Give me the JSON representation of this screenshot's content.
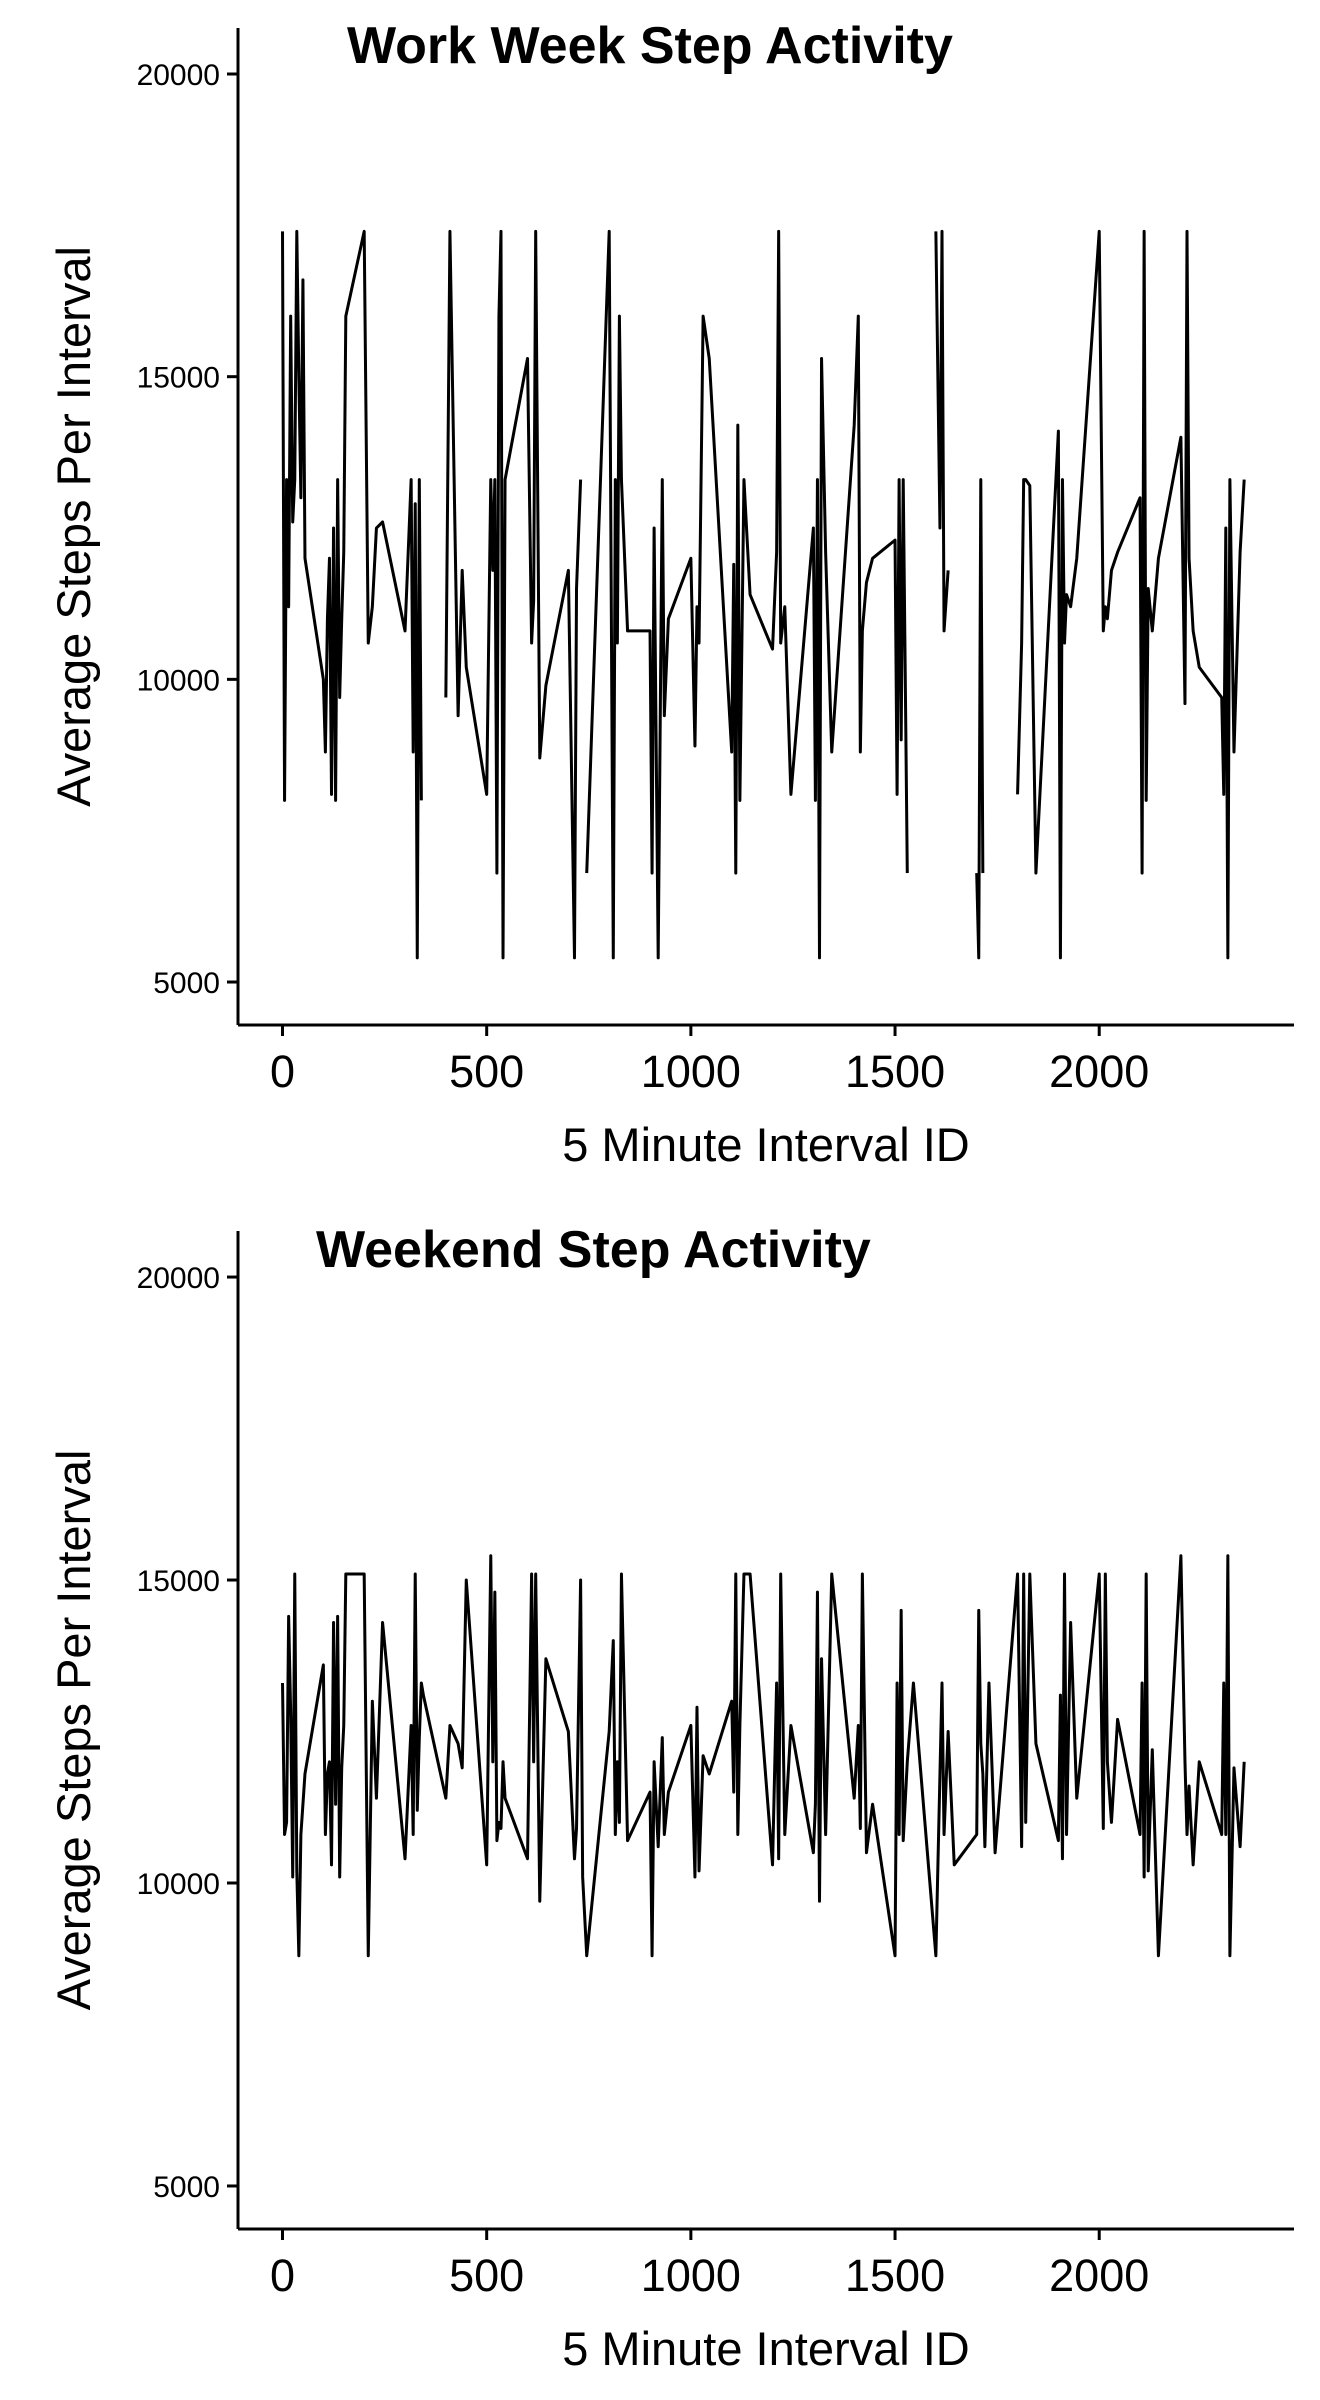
{
  "chart_data": [
    {
      "type": "line",
      "title": "Work Week Step Activity",
      "x_label": "5 Minute Interval ID",
      "y_label": "Average Steps Per Interval",
      "xlim": [
        -109,
        2477
      ],
      "ylim": [
        4290,
        20760
      ],
      "xticks": [
        0,
        500,
        1000,
        1500,
        2000
      ],
      "yticks": [
        5000,
        10000,
        15000,
        20000
      ],
      "grid": false,
      "x": [
        0,
        5,
        10,
        15,
        20,
        25,
        30,
        35,
        40,
        45,
        50,
        55,
        100,
        105,
        110,
        115,
        120,
        125,
        130,
        135,
        140,
        145,
        150,
        155,
        200,
        210,
        220,
        230,
        245,
        300,
        315,
        320,
        325,
        330,
        335,
        340,
        345,
        400,
        410,
        430,
        440,
        450,
        500,
        510,
        515,
        520,
        525,
        530,
        535,
        540,
        545,
        600,
        610,
        615,
        620,
        630,
        645,
        700,
        715,
        720,
        730,
        735,
        745,
        800,
        810,
        815,
        820,
        825,
        830,
        845,
        900,
        905,
        910,
        920,
        930,
        935,
        945,
        1000,
        1010,
        1015,
        1020,
        1030,
        1045,
        1100,
        1105,
        1110,
        1115,
        1120,
        1130,
        1145,
        1200,
        1210,
        1215,
        1220,
        1230,
        1245,
        1300,
        1305,
        1310,
        1315,
        1320,
        1330,
        1345,
        1400,
        1410,
        1415,
        1420,
        1430,
        1445,
        1500,
        1505,
        1510,
        1515,
        1520,
        1530,
        1545,
        1600,
        1610,
        1615,
        1620,
        1630,
        1645,
        1700,
        1705,
        1710,
        1715,
        1720,
        1730,
        1745,
        1800,
        1810,
        1815,
        1820,
        1830,
        1845,
        1900,
        1905,
        1910,
        1915,
        1920,
        1930,
        1945,
        2000,
        2010,
        2015,
        2020,
        2030,
        2045,
        2100,
        2105,
        2110,
        2115,
        2120,
        2130,
        2145,
        2200,
        2210,
        2215,
        2220,
        2230,
        2245,
        2300,
        2305,
        2310,
        2315,
        2320,
        2330,
        2345,
        2355
      ],
      "series": [
        {
          "color": "#000000",
          "values": [
            17400,
            8000,
            13300,
            11200,
            16000,
            12600,
            13300,
            17400,
            15000,
            13000,
            16600,
            12000,
            10000,
            8800,
            11000,
            12000,
            8100,
            12500,
            8000,
            13300,
            9700,
            11000,
            12100,
            16000,
            17400,
            10600,
            11200,
            12500,
            12600,
            10800,
            13300,
            8800,
            12900,
            5400,
            13300,
            8000,
            null,
            9700,
            17400,
            9400,
            11800,
            10200,
            8100,
            13300,
            11800,
            13300,
            6800,
            16000,
            17400,
            5400,
            13300,
            15300,
            10600,
            11300,
            17400,
            8700,
            9900,
            11800,
            5400,
            11500,
            13300,
            null,
            6800,
            17400,
            5400,
            13300,
            10600,
            16000,
            13300,
            10800,
            10800,
            6800,
            12500,
            5400,
            13300,
            9400,
            11000,
            12000,
            8900,
            11200,
            10600,
            16000,
            15300,
            8800,
            11900,
            6800,
            14200,
            8000,
            13300,
            11400,
            10500,
            12100,
            17400,
            10600,
            11200,
            8100,
            12500,
            8000,
            13300,
            5400,
            15300,
            12100,
            8800,
            14200,
            16000,
            8800,
            10800,
            11600,
            12000,
            12300,
            8100,
            13300,
            9000,
            13300,
            6800,
            null,
            17400,
            12500,
            17400,
            10800,
            11800,
            null,
            6800,
            5400,
            13300,
            6800,
            null,
            11700,
            null,
            8100,
            10600,
            13300,
            13300,
            13200,
            6800,
            14100,
            5400,
            13300,
            10600,
            11400,
            11200,
            12000,
            17400,
            10800,
            11200,
            11000,
            11800,
            12100,
            13000,
            6800,
            17400,
            8000,
            11500,
            10800,
            12000,
            14000,
            9600,
            17400,
            12000,
            10800,
            10200,
            9700,
            8100,
            12500,
            5400,
            13300,
            8800,
            12100,
            13300
          ]
        }
      ]
    },
    {
      "type": "line",
      "title": "Weekend Step Activity",
      "x_label": "5 Minute Interval ID",
      "y_label": "Average Steps Per Interval",
      "xlim": [
        -109,
        2477
      ],
      "ylim": [
        4290,
        20760
      ],
      "xticks": [
        0,
        500,
        1000,
        1500,
        2000
      ],
      "yticks": [
        5000,
        10000,
        15000,
        20000
      ],
      "grid": false,
      "x": [
        0,
        5,
        10,
        15,
        20,
        25,
        30,
        35,
        40,
        45,
        50,
        55,
        100,
        105,
        110,
        115,
        120,
        125,
        130,
        135,
        140,
        145,
        150,
        155,
        200,
        210,
        220,
        230,
        245,
        300,
        315,
        320,
        325,
        330,
        335,
        340,
        345,
        400,
        410,
        430,
        440,
        450,
        500,
        510,
        515,
        520,
        525,
        530,
        535,
        540,
        545,
        600,
        610,
        615,
        620,
        630,
        645,
        700,
        715,
        720,
        730,
        735,
        745,
        800,
        810,
        815,
        820,
        825,
        830,
        845,
        900,
        905,
        910,
        920,
        930,
        935,
        945,
        1000,
        1010,
        1015,
        1020,
        1030,
        1045,
        1100,
        1105,
        1110,
        1115,
        1120,
        1130,
        1145,
        1200,
        1210,
        1215,
        1220,
        1230,
        1245,
        1300,
        1305,
        1310,
        1315,
        1320,
        1330,
        1345,
        1400,
        1410,
        1415,
        1420,
        1430,
        1445,
        1500,
        1505,
        1510,
        1515,
        1520,
        1530,
        1545,
        1600,
        1610,
        1615,
        1620,
        1630,
        1645,
        1700,
        1705,
        1710,
        1715,
        1720,
        1730,
        1745,
        1800,
        1810,
        1815,
        1820,
        1830,
        1845,
        1900,
        1905,
        1910,
        1915,
        1920,
        1930,
        1945,
        2000,
        2010,
        2015,
        2020,
        2030,
        2045,
        2100,
        2105,
        2110,
        2115,
        2120,
        2130,
        2145,
        2200,
        2210,
        2215,
        2220,
        2230,
        2245,
        2300,
        2305,
        2310,
        2315,
        2320,
        2330,
        2345,
        2355
      ],
      "series": [
        {
          "color": "#000000",
          "values": [
            13300,
            10800,
            11000,
            14400,
            12800,
            10100,
            15100,
            10200,
            8800,
            10800,
            11300,
            11800,
            13600,
            10800,
            11800,
            12000,
            10300,
            14300,
            11300,
            14400,
            10100,
            11900,
            12600,
            15100,
            15100,
            8800,
            13000,
            11400,
            14300,
            10400,
            12600,
            10800,
            15100,
            11200,
            12400,
            13300,
            13100,
            11400,
            12600,
            12300,
            11900,
            15000,
            10300,
            15400,
            12000,
            14800,
            10700,
            11000,
            10900,
            12000,
            11400,
            10400,
            15100,
            12000,
            15100,
            9700,
            13700,
            12500,
            10400,
            10900,
            15000,
            10100,
            8800,
            12500,
            14000,
            10800,
            12000,
            11000,
            15100,
            10700,
            11500,
            8800,
            12000,
            10600,
            12400,
            10800,
            11500,
            12600,
            10100,
            12900,
            10200,
            12100,
            11800,
            13000,
            11500,
            15100,
            10800,
            12600,
            15100,
            15100,
            10300,
            13300,
            10400,
            15100,
            10800,
            12600,
            10500,
            11300,
            14800,
            9700,
            13700,
            10800,
            15100,
            11400,
            12600,
            10900,
            15100,
            10500,
            11300,
            8800,
            13300,
            10800,
            14500,
            10700,
            12000,
            13300,
            8800,
            11800,
            13300,
            10800,
            12500,
            10300,
            10800,
            14500,
            12300,
            11800,
            10600,
            13300,
            10500,
            15100,
            10600,
            15100,
            11000,
            15100,
            12300,
            10700,
            13100,
            10400,
            15100,
            10800,
            14300,
            11400,
            15100,
            10900,
            15100,
            12000,
            11000,
            12700,
            10800,
            13300,
            10100,
            15100,
            10200,
            12200,
            8800,
            15400,
            12000,
            10800,
            11600,
            10300,
            12000,
            10800,
            13300,
            10800,
            15400,
            8800,
            11900,
            10600,
            12000
          ]
        }
      ]
    }
  ]
}
